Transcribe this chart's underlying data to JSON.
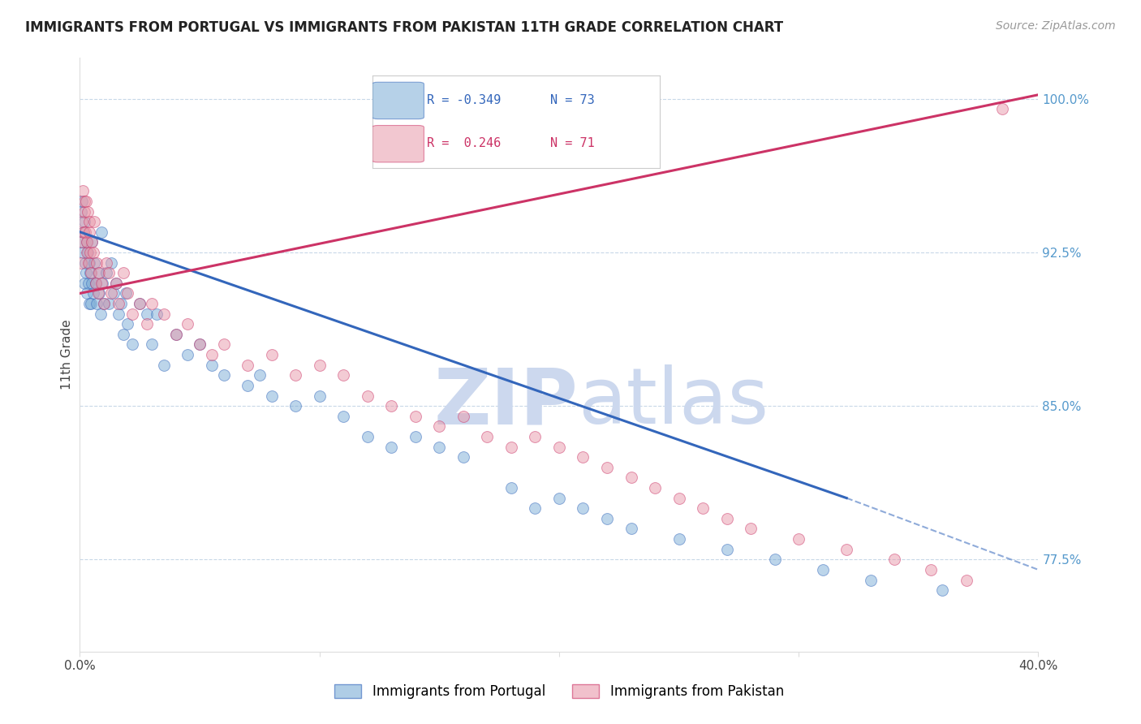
{
  "title": "IMMIGRANTS FROM PORTUGAL VS IMMIGRANTS FROM PAKISTAN 11TH GRADE CORRELATION CHART",
  "source": "Source: ZipAtlas.com",
  "ylabel": "11th Grade",
  "right_yticks": [
    77.5,
    85.0,
    92.5,
    100.0
  ],
  "right_ytick_labels": [
    "77.5%",
    "85.0%",
    "92.5%",
    "100.0%"
  ],
  "xlim": [
    0.0,
    40.0
  ],
  "ylim": [
    73.0,
    102.0
  ],
  "blue_R": -0.349,
  "blue_N": 73,
  "pink_R": 0.246,
  "pink_N": 71,
  "blue_color": "#7aacd6",
  "pink_color": "#e899aa",
  "blue_line_color": "#3366bb",
  "pink_line_color": "#cc3366",
  "watermark_color": "#ccd8ee",
  "legend_label_blue": "Immigrants from Portugal",
  "legend_label_pink": "Immigrants from Pakistan",
  "blue_scatter_x": [
    0.05,
    0.08,
    0.1,
    0.12,
    0.15,
    0.18,
    0.2,
    0.22,
    0.25,
    0.28,
    0.3,
    0.32,
    0.35,
    0.38,
    0.4,
    0.42,
    0.45,
    0.48,
    0.5,
    0.55,
    0.6,
    0.65,
    0.7,
    0.75,
    0.8,
    0.85,
    0.9,
    0.95,
    1.0,
    1.1,
    1.2,
    1.3,
    1.4,
    1.5,
    1.6,
    1.7,
    1.8,
    1.9,
    2.0,
    2.2,
    2.5,
    2.8,
    3.0,
    3.2,
    3.5,
    4.0,
    4.5,
    5.0,
    5.5,
    6.0,
    7.0,
    7.5,
    8.0,
    9.0,
    10.0,
    11.0,
    12.0,
    13.0,
    14.0,
    15.0,
    16.0,
    18.0,
    19.0,
    20.0,
    21.0,
    22.0,
    23.0,
    25.0,
    27.0,
    29.0,
    31.0,
    33.0,
    36.0
  ],
  "blue_scatter_y": [
    94.5,
    93.0,
    95.0,
    92.5,
    93.5,
    91.0,
    94.0,
    92.0,
    91.5,
    93.0,
    90.5,
    92.5,
    91.0,
    90.0,
    92.0,
    91.5,
    90.0,
    93.0,
    91.0,
    90.5,
    92.0,
    91.0,
    90.0,
    91.5,
    90.5,
    89.5,
    93.5,
    91.0,
    90.0,
    91.5,
    90.0,
    92.0,
    90.5,
    91.0,
    89.5,
    90.0,
    88.5,
    90.5,
    89.0,
    88.0,
    90.0,
    89.5,
    88.0,
    89.5,
    87.0,
    88.5,
    87.5,
    88.0,
    87.0,
    86.5,
    86.0,
    86.5,
    85.5,
    85.0,
    85.5,
    84.5,
    83.5,
    83.0,
    83.5,
    83.0,
    82.5,
    81.0,
    80.0,
    80.5,
    80.0,
    79.5,
    79.0,
    78.5,
    78.0,
    77.5,
    77.0,
    76.5,
    76.0
  ],
  "pink_scatter_x": [
    0.05,
    0.08,
    0.1,
    0.12,
    0.15,
    0.18,
    0.2,
    0.22,
    0.25,
    0.28,
    0.3,
    0.32,
    0.35,
    0.38,
    0.4,
    0.42,
    0.45,
    0.5,
    0.55,
    0.6,
    0.65,
    0.7,
    0.75,
    0.8,
    0.9,
    1.0,
    1.1,
    1.2,
    1.3,
    1.5,
    1.6,
    1.8,
    2.0,
    2.2,
    2.5,
    2.8,
    3.0,
    3.5,
    4.0,
    4.5,
    5.0,
    5.5,
    6.0,
    7.0,
    8.0,
    9.0,
    10.0,
    11.0,
    12.0,
    13.0,
    14.0,
    15.0,
    16.0,
    17.0,
    18.0,
    19.0,
    20.0,
    21.0,
    22.0,
    23.0,
    24.0,
    25.0,
    26.0,
    27.0,
    28.0,
    30.0,
    32.0,
    34.0,
    35.5,
    37.0,
    38.5
  ],
  "pink_scatter_y": [
    92.0,
    94.0,
    93.0,
    95.5,
    93.5,
    94.5,
    95.0,
    93.5,
    95.0,
    92.5,
    93.0,
    94.5,
    92.0,
    93.5,
    94.0,
    92.5,
    91.5,
    93.0,
    92.5,
    94.0,
    91.0,
    92.0,
    90.5,
    91.5,
    91.0,
    90.0,
    92.0,
    91.5,
    90.5,
    91.0,
    90.0,
    91.5,
    90.5,
    89.5,
    90.0,
    89.0,
    90.0,
    89.5,
    88.5,
    89.0,
    88.0,
    87.5,
    88.0,
    87.0,
    87.5,
    86.5,
    87.0,
    86.5,
    85.5,
    85.0,
    84.5,
    84.0,
    84.5,
    83.5,
    83.0,
    83.5,
    83.0,
    82.5,
    82.0,
    81.5,
    81.0,
    80.5,
    80.0,
    79.5,
    79.0,
    78.5,
    78.0,
    77.5,
    77.0,
    76.5,
    99.5
  ],
  "blue_line_x0": 0.0,
  "blue_line_y0": 93.5,
  "blue_line_x1": 32.0,
  "blue_line_y1": 80.5,
  "blue_dash_x0": 32.0,
  "blue_dash_y0": 80.5,
  "blue_dash_x1": 40.0,
  "blue_dash_y1": 77.0,
  "pink_line_x0": 0.0,
  "pink_line_y0": 90.5,
  "pink_line_x1": 40.0,
  "pink_line_y1": 100.2
}
